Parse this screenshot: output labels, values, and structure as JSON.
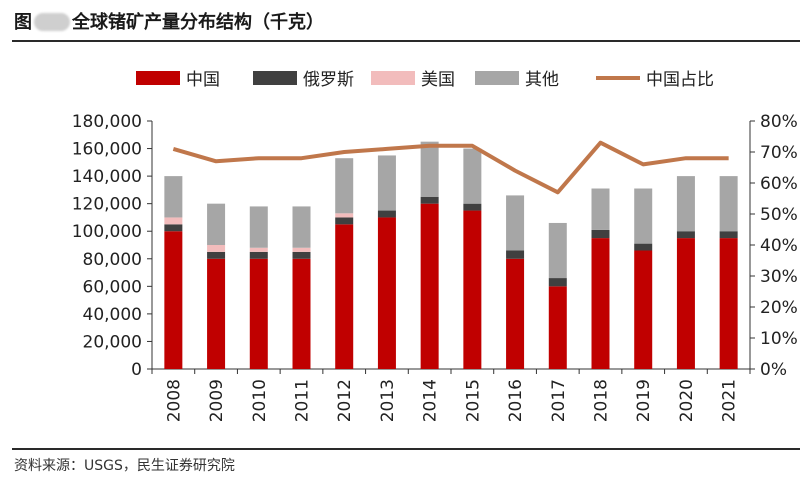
{
  "title_prefix": "图",
  "title_suffix": "全球锗矿产量分布结构（千克）",
  "source": "资料来源：USGS，民生证券研究院",
  "chart_data": {
    "type": "bar",
    "stacked": true,
    "categories": [
      "2008",
      "2009",
      "2010",
      "2011",
      "2012",
      "2013",
      "2014",
      "2015",
      "2016",
      "2017",
      "2018",
      "2019",
      "2020",
      "2021"
    ],
    "series": [
      {
        "name": "中国",
        "color": "#c00000",
        "values": [
          100000,
          80000,
          80000,
          80000,
          105000,
          110000,
          120000,
          115000,
          80000,
          60000,
          95000,
          86000,
          95000,
          95000
        ]
      },
      {
        "name": "俄罗斯",
        "color": "#404040",
        "values": [
          5000,
          5000,
          5000,
          5000,
          5000,
          5000,
          5000,
          5000,
          6000,
          6000,
          6000,
          5000,
          5000,
          5000
        ]
      },
      {
        "name": "美国",
        "color": "#f2bcbc",
        "values": [
          5000,
          5000,
          3000,
          3000,
          3000,
          0,
          0,
          0,
          0,
          0,
          0,
          0,
          0,
          0
        ]
      },
      {
        "name": "其他",
        "color": "#a6a6a6",
        "values": [
          30000,
          30000,
          30000,
          30000,
          40000,
          40000,
          40000,
          40000,
          40000,
          40000,
          30000,
          40000,
          40000,
          40000
        ]
      }
    ],
    "line": {
      "name": "中国占比",
      "color": "#c0774b",
      "values": [
        0.71,
        0.67,
        0.68,
        0.68,
        0.7,
        0.71,
        0.72,
        0.72,
        0.64,
        0.57,
        0.73,
        0.66,
        0.68,
        0.68
      ]
    },
    "yticks_left": [
      "0",
      "20,000",
      "40,000",
      "60,000",
      "80,000",
      "100,000",
      "120,000",
      "140,000",
      "160,000",
      "180,000"
    ],
    "yticks_right": [
      "0%",
      "10%",
      "20%",
      "30%",
      "40%",
      "50%",
      "60%",
      "70%",
      "80%"
    ],
    "ylim_left": [
      0,
      180000
    ],
    "ylim_right": [
      0,
      0.8
    ],
    "grid": false,
    "legend_position": "top"
  }
}
